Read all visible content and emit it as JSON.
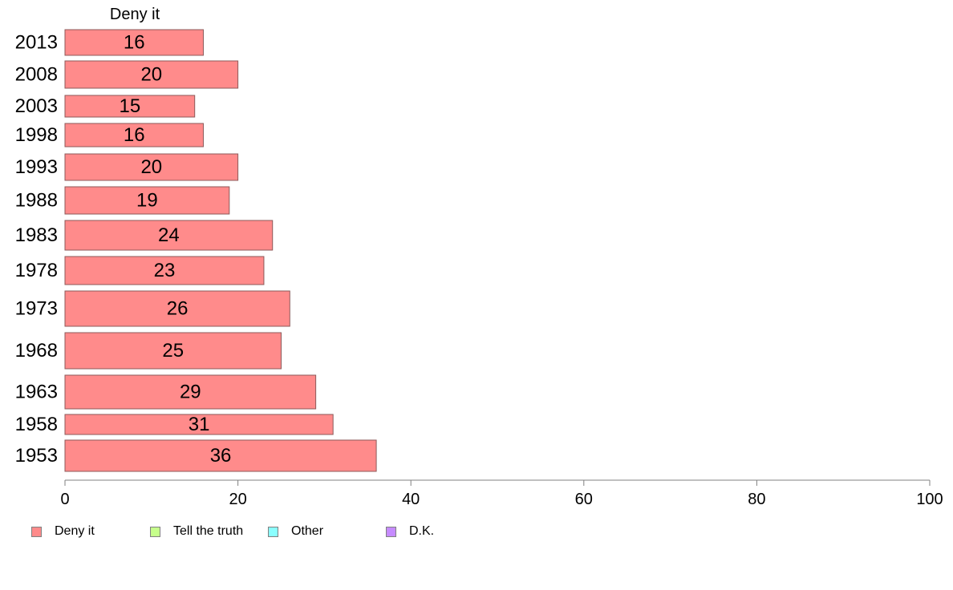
{
  "chart_data": {
    "type": "bar",
    "orientation": "horizontal",
    "title": "Deny it",
    "categories": [
      "2013",
      "2008",
      "2003",
      "1998",
      "1993",
      "1988",
      "1983",
      "1978",
      "1973",
      "1968",
      "1963",
      "1958",
      "1953"
    ],
    "series": [
      {
        "name": "Deny it",
        "color": "#ff8b8b",
        "values": [
          16,
          20,
          15,
          16,
          20,
          19,
          24,
          23,
          26,
          25,
          29,
          31,
          36
        ]
      }
    ],
    "xlim": [
      0,
      100
    ],
    "xticks": [
      0,
      20,
      40,
      60,
      80,
      100
    ],
    "grid": false,
    "legend_position": "bottom-left"
  },
  "legend": [
    {
      "label": "Deny it",
      "color": "#ff8b8b"
    },
    {
      "label": "Tell the truth",
      "color": "#c6ff8b"
    },
    {
      "label": "Other",
      "color": "#8bffff"
    },
    {
      "label": "D.K.",
      "color": "#c68bff"
    }
  ]
}
